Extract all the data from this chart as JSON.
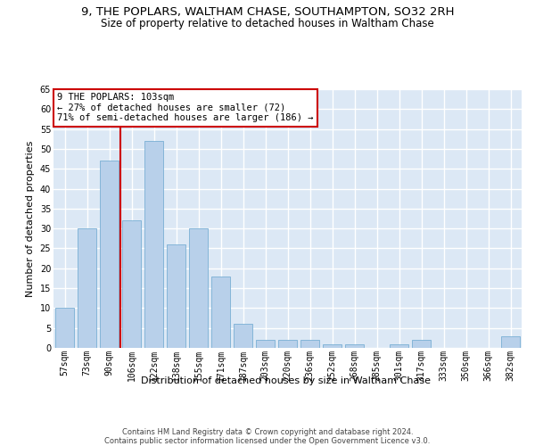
{
  "title_line1": "9, THE POPLARS, WALTHAM CHASE, SOUTHAMPTON, SO32 2RH",
  "title_line2": "Size of property relative to detached houses in Waltham Chase",
  "xlabel": "Distribution of detached houses by size in Waltham Chase",
  "ylabel": "Number of detached properties",
  "categories": [
    "57sqm",
    "73sqm",
    "90sqm",
    "106sqm",
    "122sqm",
    "138sqm",
    "155sqm",
    "171sqm",
    "187sqm",
    "203sqm",
    "220sqm",
    "236sqm",
    "252sqm",
    "268sqm",
    "285sqm",
    "301sqm",
    "317sqm",
    "333sqm",
    "350sqm",
    "366sqm",
    "382sqm"
  ],
  "values": [
    10,
    30,
    47,
    32,
    52,
    26,
    30,
    18,
    6,
    2,
    2,
    2,
    1,
    1,
    0,
    1,
    2,
    0,
    0,
    0,
    3
  ],
  "bar_color": "#b8d0ea",
  "bar_edge_color": "#7aafd4",
  "vline_x": 2.5,
  "vline_color": "#cc0000",
  "annotation_text": "9 THE POPLARS: 103sqm\n← 27% of detached houses are smaller (72)\n71% of semi-detached houses are larger (186) →",
  "annotation_box_color": "#ffffff",
  "annotation_box_edge": "#cc0000",
  "footer_text": "Contains HM Land Registry data © Crown copyright and database right 2024.\nContains public sector information licensed under the Open Government Licence v3.0.",
  "ylim": [
    0,
    65
  ],
  "yticks": [
    0,
    5,
    10,
    15,
    20,
    25,
    30,
    35,
    40,
    45,
    50,
    55,
    60,
    65
  ],
  "background_color": "#dce8f5",
  "grid_color": "#ffffff",
  "title_fontsize": 9.5,
  "subtitle_fontsize": 8.5,
  "axis_label_fontsize": 8,
  "tick_fontsize": 7,
  "annotation_fontsize": 7.5,
  "footer_fontsize": 6
}
